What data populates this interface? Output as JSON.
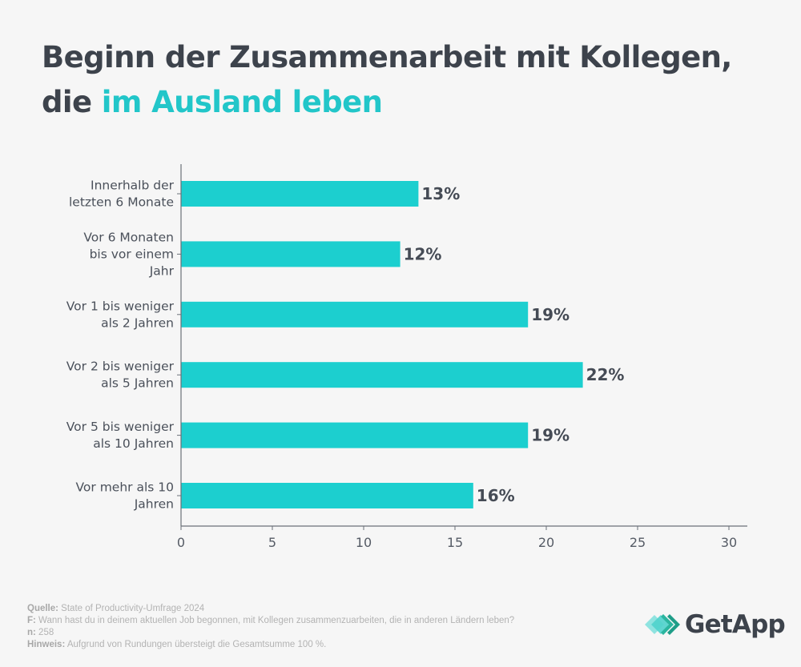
{
  "title": {
    "line1": "Beginn der Zusammenarbeit mit Kollegen,",
    "line2_plain": "die",
    "line2_accent": "im Ausland leben"
  },
  "colors": {
    "bar": "#1ccfcf",
    "accent_title": "#22c6c9",
    "text_dark": "#3d434c",
    "axis": "#6b7078",
    "background": "#f6f6f6"
  },
  "chart_data": {
    "type": "bar",
    "orientation": "horizontal",
    "title": "Beginn der Zusammenarbeit mit Kollegen, die im Ausland leben",
    "xlabel": "",
    "ylabel": "",
    "categories": [
      [
        "Innerhalb der",
        "letzten 6 Monate"
      ],
      [
        "Vor 6 Monaten",
        "bis vor einem",
        "Jahr"
      ],
      [
        "Vor 1 bis weniger",
        "als 2 Jahren"
      ],
      [
        "Vor 2 bis weniger",
        "als 5 Jahren"
      ],
      [
        "Vor 5 bis weniger",
        "als 10 Jahren"
      ],
      [
        "Vor mehr als 10",
        "Jahren"
      ]
    ],
    "values": [
      13,
      12,
      19,
      22,
      19,
      16
    ],
    "value_labels": [
      "13%",
      "12%",
      "19%",
      "22%",
      "19%",
      "16%"
    ],
    "xlim": [
      0,
      30
    ],
    "xticks": [
      0,
      5,
      10,
      15,
      20,
      25,
      30
    ],
    "grid": false,
    "legend": "none"
  },
  "footer": {
    "source_label": "Quelle:",
    "source_text": " State of Productivity-Umfrage 2024",
    "question_label": "F:",
    "question_text": " Wann hast du in deinem aktuellen Job begonnen, mit Kollegen zusammenzuarbeiten, die in anderen Ländern leben?",
    "n_label": "n:",
    "n_text": " 258",
    "note_label": "Hinweis:",
    "note_text": " Aufgrund von Rundungen übersteigt die Gesamtsumme 100 %."
  },
  "logo": {
    "icon": "getapp-chevrons-icon",
    "text": "GetApp"
  }
}
